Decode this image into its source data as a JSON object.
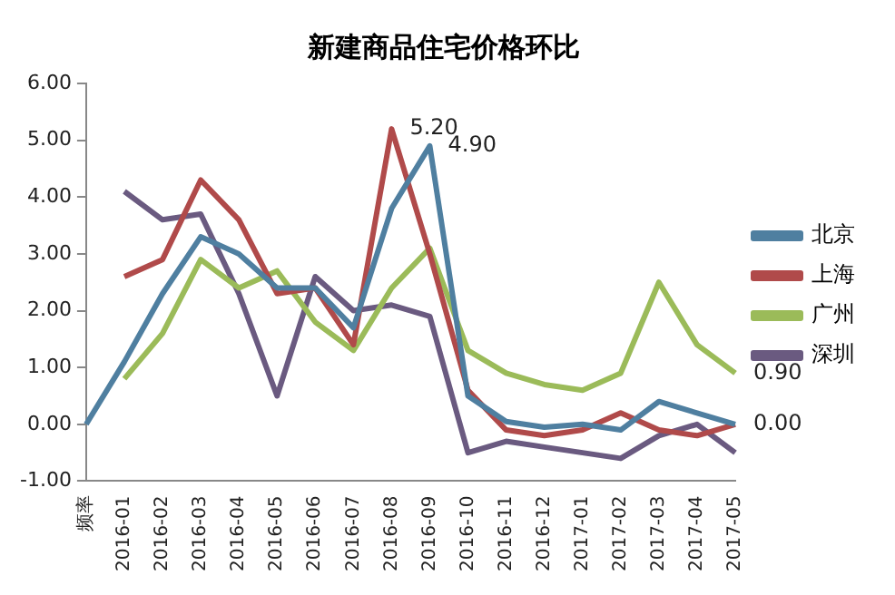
{
  "chart_data": {
    "type": "line",
    "title": "新建商品住宅价格环比",
    "categories": [
      "频率",
      "2016-01",
      "2016-02",
      "2016-03",
      "2016-04",
      "2016-05",
      "2016-06",
      "2016-07",
      "2016-08",
      "2016-09",
      "2016-10",
      "2016-11",
      "2016-12",
      "2017-01",
      "2017-02",
      "2017-03",
      "2017-04",
      "2017-05"
    ],
    "series": [
      {
        "name": "北京",
        "color": "#4f7fa0",
        "values": [
          0,
          1.1,
          2.3,
          3.3,
          3.0,
          2.4,
          2.4,
          1.7,
          3.8,
          4.9,
          0.5,
          0.05,
          -0.05,
          0.0,
          -0.1,
          0.4,
          0.2,
          0.0
        ]
      },
      {
        "name": "上海",
        "color": "#b04a4a",
        "values": [
          null,
          2.6,
          2.9,
          4.3,
          3.6,
          2.3,
          2.4,
          1.4,
          5.2,
          3.0,
          0.6,
          -0.1,
          -0.2,
          -0.1,
          0.2,
          -0.1,
          -0.2,
          0.0
        ]
      },
      {
        "name": "广州",
        "color": "#9bbb59",
        "values": [
          null,
          0.8,
          1.6,
          2.9,
          2.4,
          2.7,
          1.8,
          1.3,
          2.4,
          3.1,
          1.3,
          0.9,
          0.7,
          0.6,
          0.9,
          2.5,
          1.4,
          0.9
        ]
      },
      {
        "name": "深圳",
        "color": "#6a5a80",
        "values": [
          null,
          4.1,
          3.6,
          3.7,
          2.3,
          0.5,
          2.6,
          2.0,
          2.1,
          1.9,
          -0.5,
          -0.3,
          -0.4,
          -0.5,
          -0.6,
          -0.2,
          0.0,
          -0.5
        ]
      }
    ],
    "ylim": [
      -1,
      6
    ],
    "yticks": [
      {
        "value": -1,
        "label": "-1.00"
      },
      {
        "value": 0,
        "label": "0.00"
      },
      {
        "value": 1,
        "label": "1.00"
      },
      {
        "value": 2,
        "label": "2.00"
      },
      {
        "value": 3,
        "label": "3.00"
      },
      {
        "value": 4,
        "label": "4.00"
      },
      {
        "value": 5,
        "label": "5.00"
      },
      {
        "value": 6,
        "label": "6.00"
      }
    ],
    "annotations": [
      {
        "text": "5.20",
        "x": "2016-08",
        "y": 5.2
      },
      {
        "text": "4.90",
        "x": "2016-09",
        "y": 4.9
      },
      {
        "text": "0.90",
        "x": "2017-05",
        "y": 0.9
      },
      {
        "text": "0.00",
        "x": "2017-05",
        "y": 0.0
      }
    ],
    "grid": false,
    "legend": "right",
    "marker": "none",
    "line_style": "solid"
  }
}
